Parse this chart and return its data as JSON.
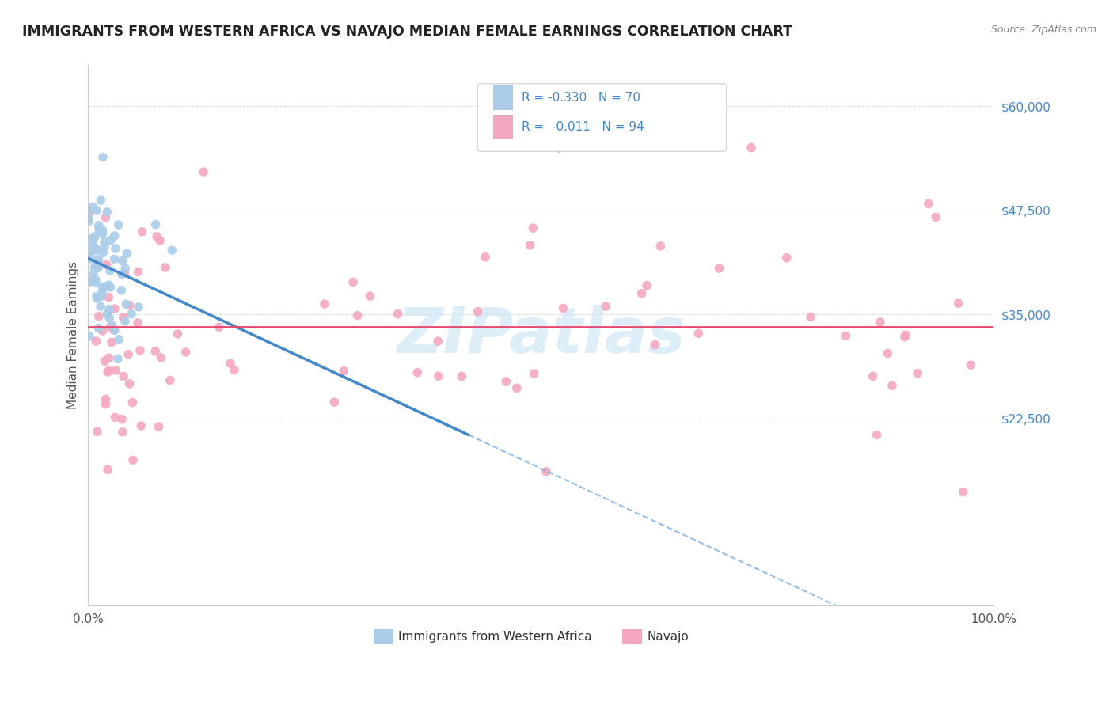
{
  "title": "IMMIGRANTS FROM WESTERN AFRICA VS NAVAJO MEDIAN FEMALE EARNINGS CORRELATION CHART",
  "source": "Source: ZipAtlas.com",
  "ylabel": "Median Female Earnings",
  "xlim": [
    0.0,
    1.0
  ],
  "ylim": [
    0,
    65000
  ],
  "color_blue": "#aacce8",
  "color_pink": "#f4a8c0",
  "color_trendline_blue": "#4488cc",
  "color_trendline_pink": "#e84870",
  "watermark": "ZIPatlas",
  "background_color": "#ffffff",
  "grid_color": "#dddddd",
  "yticks": [
    0,
    22500,
    35000,
    47500,
    60000
  ],
  "ytick_labels": [
    "",
    "$22,500",
    "$35,000",
    "$47,500",
    "$60,000"
  ],
  "legend_r1": "R = -0.330",
  "legend_n1": "N = 70",
  "legend_r2": "R =  -0.011",
  "legend_n2": "N = 94"
}
